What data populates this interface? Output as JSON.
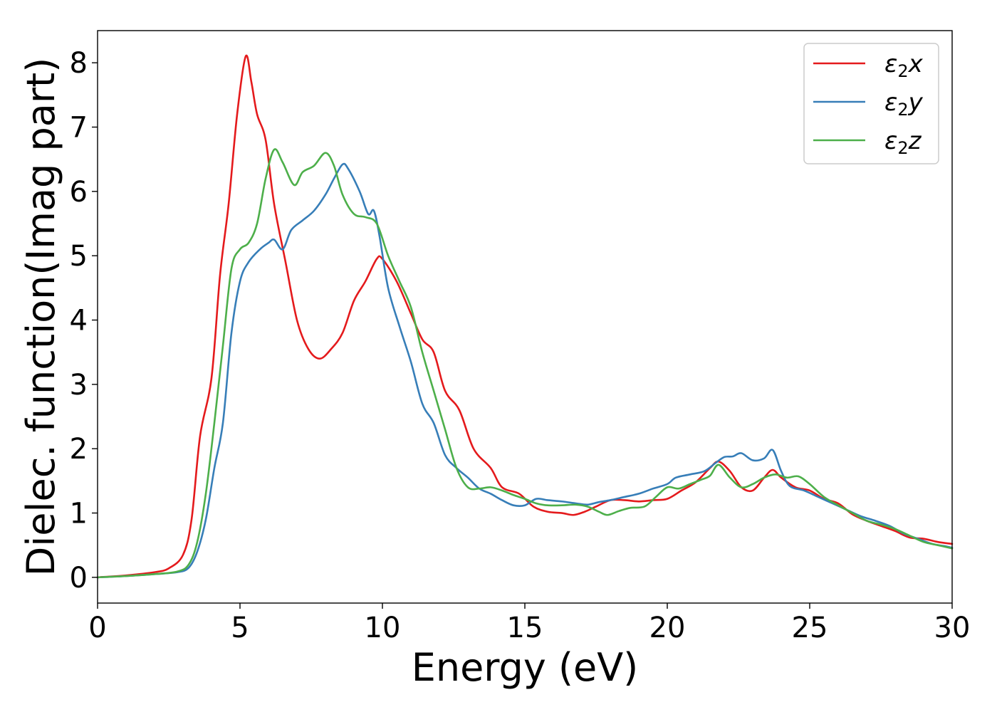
{
  "chart_data": {
    "type": "line",
    "title": "",
    "xlabel": "Energy (eV)",
    "ylabel": "Dielec. function(Imag part)",
    "xlim": [
      0,
      30
    ],
    "ylim": [
      -0.4,
      8.5
    ],
    "xticks": [
      0,
      5,
      10,
      15,
      20,
      25,
      30
    ],
    "yticks": [
      0,
      1,
      2,
      3,
      4,
      5,
      6,
      7,
      8
    ],
    "grid": false,
    "legend_position": "top-right",
    "series": [
      {
        "name": "ε₂x",
        "legend_base": "ε",
        "legend_sub": "2",
        "legend_var": "x",
        "color": "#e41a1c",
        "points": [
          [
            0,
            0
          ],
          [
            1,
            0.03
          ],
          [
            2,
            0.08
          ],
          [
            2.5,
            0.14
          ],
          [
            3,
            0.35
          ],
          [
            3.3,
            0.9
          ],
          [
            3.6,
            2.2
          ],
          [
            4,
            3.1
          ],
          [
            4.3,
            4.7
          ],
          [
            4.6,
            5.8
          ],
          [
            4.9,
            7.2
          ],
          [
            5.2,
            8.1
          ],
          [
            5.4,
            7.7
          ],
          [
            5.6,
            7.2
          ],
          [
            5.9,
            6.8
          ],
          [
            6.2,
            5.8
          ],
          [
            6.6,
            4.9
          ],
          [
            7,
            4.0
          ],
          [
            7.4,
            3.55
          ],
          [
            7.8,
            3.4
          ],
          [
            8.2,
            3.55
          ],
          [
            8.6,
            3.8
          ],
          [
            9,
            4.3
          ],
          [
            9.4,
            4.6
          ],
          [
            9.8,
            4.95
          ],
          [
            10,
            4.95
          ],
          [
            10.5,
            4.6
          ],
          [
            11,
            4.1
          ],
          [
            11.4,
            3.7
          ],
          [
            11.8,
            3.5
          ],
          [
            12.2,
            2.9
          ],
          [
            12.7,
            2.6
          ],
          [
            13.2,
            2.0
          ],
          [
            13.8,
            1.7
          ],
          [
            14.2,
            1.4
          ],
          [
            14.8,
            1.3
          ],
          [
            15.3,
            1.1
          ],
          [
            15.8,
            1.02
          ],
          [
            16.3,
            1.0
          ],
          [
            16.7,
            0.97
          ],
          [
            17.1,
            1.02
          ],
          [
            17.5,
            1.1
          ],
          [
            18,
            1.2
          ],
          [
            18.5,
            1.2
          ],
          [
            19,
            1.18
          ],
          [
            19.5,
            1.2
          ],
          [
            20,
            1.22
          ],
          [
            20.5,
            1.35
          ],
          [
            21,
            1.48
          ],
          [
            21.5,
            1.7
          ],
          [
            21.8,
            1.8
          ],
          [
            22.2,
            1.65
          ],
          [
            22.6,
            1.4
          ],
          [
            23,
            1.35
          ],
          [
            23.4,
            1.55
          ],
          [
            23.7,
            1.67
          ],
          [
            24,
            1.55
          ],
          [
            24.5,
            1.4
          ],
          [
            25,
            1.35
          ],
          [
            25.5,
            1.22
          ],
          [
            26,
            1.15
          ],
          [
            26.5,
            0.98
          ],
          [
            27,
            0.88
          ],
          [
            27.5,
            0.8
          ],
          [
            28,
            0.72
          ],
          [
            28.5,
            0.62
          ],
          [
            29,
            0.6
          ],
          [
            29.5,
            0.55
          ],
          [
            30,
            0.52
          ]
        ]
      },
      {
        "name": "ε₂y",
        "legend_base": "ε",
        "legend_sub": "2",
        "legend_var": "y",
        "color": "#377eb8",
        "points": [
          [
            0,
            0
          ],
          [
            1,
            0.02
          ],
          [
            2,
            0.05
          ],
          [
            2.8,
            0.08
          ],
          [
            3.2,
            0.15
          ],
          [
            3.5,
            0.4
          ],
          [
            3.8,
            0.9
          ],
          [
            4.1,
            1.7
          ],
          [
            4.4,
            2.4
          ],
          [
            4.7,
            3.8
          ],
          [
            5,
            4.6
          ],
          [
            5.3,
            4.9
          ],
          [
            5.7,
            5.1
          ],
          [
            6,
            5.2
          ],
          [
            6.2,
            5.25
          ],
          [
            6.5,
            5.1
          ],
          [
            6.8,
            5.4
          ],
          [
            7.2,
            5.55
          ],
          [
            7.6,
            5.7
          ],
          [
            8,
            5.95
          ],
          [
            8.3,
            6.2
          ],
          [
            8.6,
            6.42
          ],
          [
            8.8,
            6.35
          ],
          [
            9.2,
            6.0
          ],
          [
            9.5,
            5.65
          ],
          [
            9.7,
            5.7
          ],
          [
            9.9,
            5.3
          ],
          [
            10.2,
            4.5
          ],
          [
            10.6,
            3.9
          ],
          [
            11,
            3.35
          ],
          [
            11.4,
            2.7
          ],
          [
            11.8,
            2.4
          ],
          [
            12.2,
            1.9
          ],
          [
            12.6,
            1.7
          ],
          [
            13,
            1.55
          ],
          [
            13.4,
            1.38
          ],
          [
            13.8,
            1.3
          ],
          [
            14.2,
            1.2
          ],
          [
            14.6,
            1.12
          ],
          [
            15,
            1.12
          ],
          [
            15.4,
            1.22
          ],
          [
            15.8,
            1.2
          ],
          [
            16.3,
            1.18
          ],
          [
            16.8,
            1.15
          ],
          [
            17.2,
            1.13
          ],
          [
            17.6,
            1.17
          ],
          [
            18,
            1.2
          ],
          [
            18.5,
            1.25
          ],
          [
            19,
            1.3
          ],
          [
            19.5,
            1.38
          ],
          [
            20,
            1.45
          ],
          [
            20.3,
            1.55
          ],
          [
            20.8,
            1.6
          ],
          [
            21.3,
            1.65
          ],
          [
            21.7,
            1.78
          ],
          [
            22,
            1.87
          ],
          [
            22.3,
            1.88
          ],
          [
            22.6,
            1.93
          ],
          [
            23,
            1.82
          ],
          [
            23.4,
            1.85
          ],
          [
            23.7,
            1.98
          ],
          [
            24,
            1.65
          ],
          [
            24.3,
            1.42
          ],
          [
            24.8,
            1.35
          ],
          [
            25.3,
            1.25
          ],
          [
            25.8,
            1.15
          ],
          [
            26.3,
            1.05
          ],
          [
            26.8,
            0.95
          ],
          [
            27.3,
            0.88
          ],
          [
            27.8,
            0.8
          ],
          [
            28.3,
            0.68
          ],
          [
            28.8,
            0.6
          ],
          [
            29.3,
            0.52
          ],
          [
            29.8,
            0.48
          ],
          [
            30,
            0.46
          ]
        ]
      },
      {
        "name": "ε₂z",
        "legend_base": "ε",
        "legend_sub": "2",
        "legend_var": "z",
        "color": "#4daf4a",
        "points": [
          [
            0,
            0
          ],
          [
            1,
            0.02
          ],
          [
            2,
            0.05
          ],
          [
            2.8,
            0.09
          ],
          [
            3.2,
            0.2
          ],
          [
            3.5,
            0.55
          ],
          [
            3.8,
            1.3
          ],
          [
            4.1,
            2.4
          ],
          [
            4.4,
            3.6
          ],
          [
            4.7,
            4.8
          ],
          [
            5,
            5.1
          ],
          [
            5.3,
            5.2
          ],
          [
            5.6,
            5.5
          ],
          [
            5.9,
            6.2
          ],
          [
            6.2,
            6.65
          ],
          [
            6.5,
            6.45
          ],
          [
            6.9,
            6.1
          ],
          [
            7.2,
            6.3
          ],
          [
            7.6,
            6.4
          ],
          [
            8,
            6.6
          ],
          [
            8.3,
            6.4
          ],
          [
            8.6,
            5.95
          ],
          [
            9,
            5.65
          ],
          [
            9.4,
            5.6
          ],
          [
            9.8,
            5.5
          ],
          [
            10.2,
            5.0
          ],
          [
            10.6,
            4.6
          ],
          [
            11,
            4.2
          ],
          [
            11.4,
            3.5
          ],
          [
            11.8,
            2.9
          ],
          [
            12.2,
            2.3
          ],
          [
            12.6,
            1.7
          ],
          [
            13,
            1.4
          ],
          [
            13.4,
            1.38
          ],
          [
            13.8,
            1.4
          ],
          [
            14.2,
            1.35
          ],
          [
            14.6,
            1.28
          ],
          [
            15,
            1.22
          ],
          [
            15.4,
            1.15
          ],
          [
            15.8,
            1.12
          ],
          [
            16.3,
            1.12
          ],
          [
            16.8,
            1.13
          ],
          [
            17.2,
            1.1
          ],
          [
            17.6,
            1.02
          ],
          [
            17.9,
            0.97
          ],
          [
            18.3,
            1.03
          ],
          [
            18.7,
            1.08
          ],
          [
            19.2,
            1.1
          ],
          [
            19.6,
            1.25
          ],
          [
            20,
            1.4
          ],
          [
            20.4,
            1.38
          ],
          [
            20.8,
            1.45
          ],
          [
            21.2,
            1.52
          ],
          [
            21.5,
            1.58
          ],
          [
            21.8,
            1.75
          ],
          [
            22.2,
            1.55
          ],
          [
            22.6,
            1.4
          ],
          [
            23,
            1.45
          ],
          [
            23.4,
            1.55
          ],
          [
            23.8,
            1.6
          ],
          [
            24.2,
            1.55
          ],
          [
            24.6,
            1.57
          ],
          [
            25,
            1.45
          ],
          [
            25.5,
            1.25
          ],
          [
            26,
            1.12
          ],
          [
            26.5,
            1.0
          ],
          [
            27,
            0.88
          ],
          [
            27.5,
            0.82
          ],
          [
            28,
            0.75
          ],
          [
            28.5,
            0.65
          ],
          [
            29,
            0.55
          ],
          [
            29.5,
            0.5
          ],
          [
            30,
            0.45
          ]
        ]
      }
    ]
  }
}
